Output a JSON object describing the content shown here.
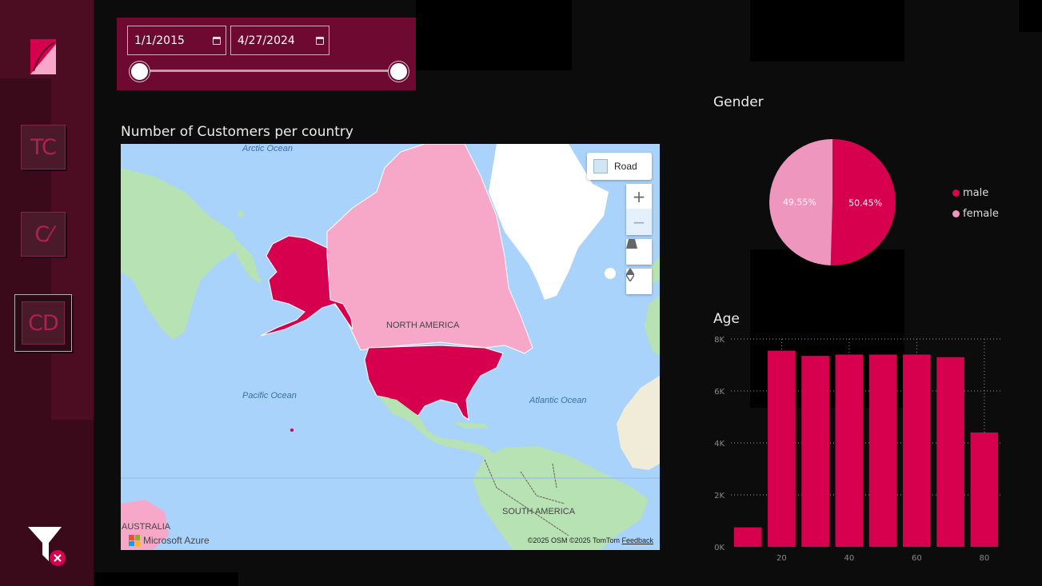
{
  "sidebar": {
    "nav": [
      {
        "label": "TC"
      },
      {
        "label": "C⁄"
      },
      {
        "label": "CD"
      }
    ]
  },
  "slicer": {
    "start_date": "1/1/2015",
    "end_date": "4/27/2024",
    "range_start_fraction": 0,
    "range_end_fraction": 1
  },
  "map_card": {
    "title": "Number of Customers per country",
    "style_button": "Road",
    "labels": {
      "arctic": "Arctic Ocean",
      "pacific": "Pacific Ocean",
      "atlantic": "Atlantic Ocean",
      "north_america": "NORTH AMERICA",
      "south_america": "SOUTH AMERICA",
      "australia": "AUSTRALIA"
    },
    "brand": "Microsoft Azure",
    "credits": "©2025 OSM  ©2025 TomTom",
    "feedback": "Feedback",
    "colors": {
      "water": "#a9d3fb",
      "highlight_high": "#d6004f",
      "highlight_low": "#f7a8c8",
      "land": "#b6e2b4"
    }
  },
  "gender_card": {
    "title": "Gender",
    "chart_data": {
      "type": "pie",
      "series": [
        {
          "name": "male",
          "percent_label": "50.45%",
          "value": 50.45,
          "color": "#d6004f"
        },
        {
          "name": "female",
          "percent_label": "49.55%",
          "value": 49.55,
          "color": "#ee96bd"
        }
      ]
    }
  },
  "age_card": {
    "title": "Age",
    "chart_data": {
      "type": "bar",
      "x": [
        10,
        20,
        30,
        40,
        50,
        60,
        70,
        80
      ],
      "values": [
        750,
        7550,
        7350,
        7400,
        7400,
        7400,
        7300,
        4400
      ],
      "xticks": [
        "20",
        "40",
        "60",
        "80"
      ],
      "yticks": [
        "0K",
        "2K",
        "4K",
        "6K",
        "8K"
      ],
      "ylim": [
        0,
        8000
      ],
      "grid": true,
      "bar_color": "#d6004f"
    }
  }
}
